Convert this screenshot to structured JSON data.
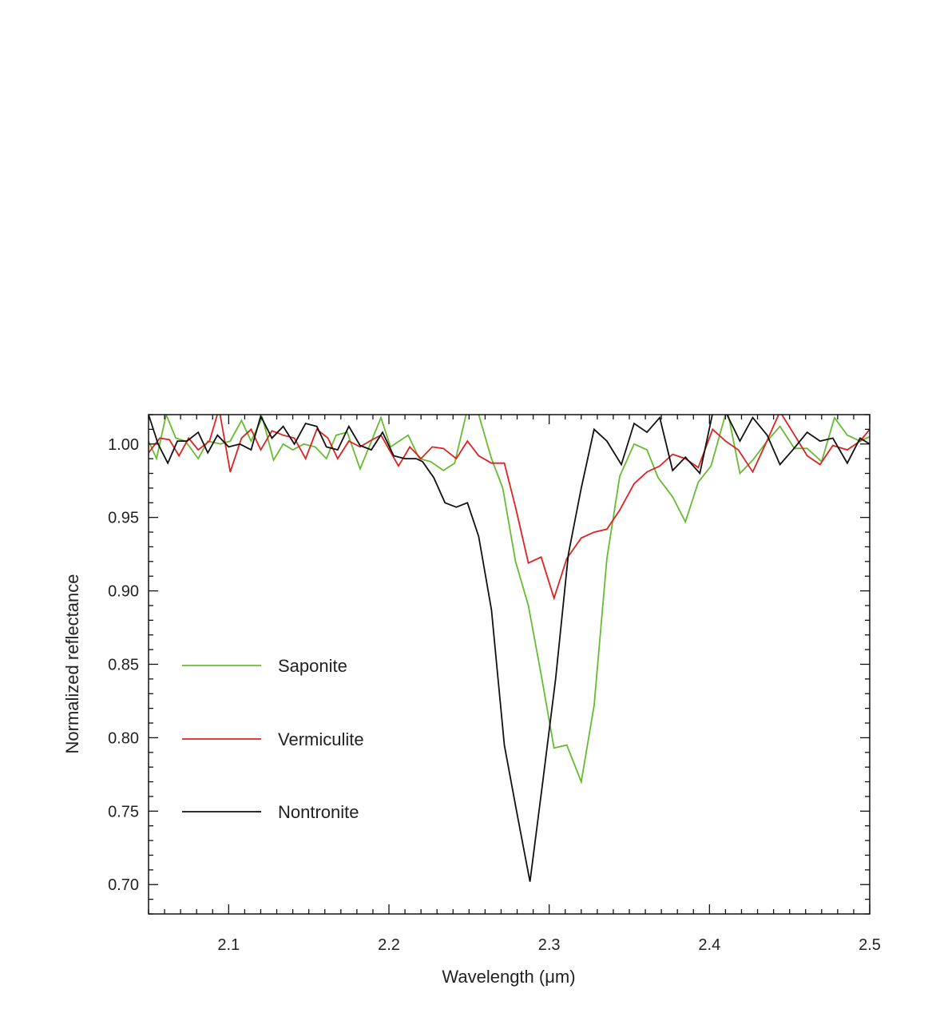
{
  "chart_data": {
    "type": "line",
    "title": "",
    "xlabel": "Wavelength (μm)",
    "ylabel": "Normalized reflectance",
    "xlim": [
      2.05,
      2.5
    ],
    "ylim": [
      0.68,
      1.02
    ],
    "grid": false,
    "legend_placement": "center-left",
    "x_ticks": [
      2.1,
      2.2,
      2.3,
      2.4,
      2.5
    ],
    "x_tick_labels": [
      "2.1",
      "2.2",
      "2.3",
      "2.4",
      "2.5"
    ],
    "y_ticks": [
      0.7,
      0.75,
      0.8,
      0.85,
      0.9,
      0.95,
      1.0
    ],
    "y_tick_labels": [
      "0.70",
      "0.75",
      "0.80",
      "0.85",
      "0.90",
      "0.95",
      "1.00"
    ],
    "series": [
      {
        "name": "Saponite",
        "color": "#66bb33",
        "points": [
          [
            2.05,
            1.002
          ],
          [
            2.055,
            0.99
          ],
          [
            2.061,
            1.02
          ],
          [
            2.067,
            1.004
          ],
          [
            2.073,
            1.002
          ],
          [
            2.081,
            0.99
          ],
          [
            2.087,
            1.002
          ],
          [
            2.095,
            1.0
          ],
          [
            2.101,
            1.002
          ],
          [
            2.108,
            1.016
          ],
          [
            2.114,
            1.002
          ],
          [
            2.121,
            1.018
          ],
          [
            2.128,
            0.989
          ],
          [
            2.134,
            1.0
          ],
          [
            2.14,
            0.996
          ],
          [
            2.147,
            1.0
          ],
          [
            2.154,
            0.998
          ],
          [
            2.161,
            0.99
          ],
          [
            2.167,
            1.006
          ],
          [
            2.174,
            1.008
          ],
          [
            2.182,
            0.983
          ],
          [
            2.188,
            0.999
          ],
          [
            2.195,
            1.018
          ],
          [
            2.201,
            0.998
          ],
          [
            2.212,
            1.006
          ],
          [
            2.219,
            0.99
          ],
          [
            2.226,
            0.988
          ],
          [
            2.234,
            0.982
          ],
          [
            2.241,
            0.987
          ],
          [
            2.249,
            1.024
          ],
          [
            2.256,
            1.02
          ],
          [
            2.264,
            0.99
          ],
          [
            2.271,
            0.97
          ],
          [
            2.279,
            0.92
          ],
          [
            2.287,
            0.89
          ],
          [
            2.295,
            0.843
          ],
          [
            2.303,
            0.793
          ],
          [
            2.311,
            0.795
          ],
          [
            2.32,
            0.77
          ],
          [
            2.328,
            0.822
          ],
          [
            2.336,
            0.922
          ],
          [
            2.344,
            0.978
          ],
          [
            2.353,
            1.0
          ],
          [
            2.361,
            0.996
          ],
          [
            2.368,
            0.977
          ],
          [
            2.377,
            0.964
          ],
          [
            2.385,
            0.947
          ],
          [
            2.393,
            0.974
          ],
          [
            2.401,
            0.985
          ],
          [
            2.411,
            1.024
          ],
          [
            2.419,
            0.98
          ],
          [
            2.427,
            0.989
          ],
          [
            2.436,
            1.002
          ],
          [
            2.444,
            1.012
          ],
          [
            2.453,
            0.997
          ],
          [
            2.461,
            0.997
          ],
          [
            2.47,
            0.988
          ],
          [
            2.478,
            1.018
          ],
          [
            2.486,
            1.006
          ],
          [
            2.494,
            1.002
          ],
          [
            2.5,
            1.005
          ]
        ]
      },
      {
        "name": "Vermiculite",
        "color": "#dd2222",
        "points": [
          [
            2.05,
            0.994
          ],
          [
            2.057,
            1.004
          ],
          [
            2.063,
            1.003
          ],
          [
            2.069,
            0.992
          ],
          [
            2.075,
            1.004
          ],
          [
            2.081,
            0.996
          ],
          [
            2.088,
            1.002
          ],
          [
            2.094,
            1.024
          ],
          [
            2.101,
            0.981
          ],
          [
            2.108,
            1.004
          ],
          [
            2.114,
            1.01
          ],
          [
            2.12,
            0.996
          ],
          [
            2.127,
            1.009
          ],
          [
            2.134,
            1.006
          ],
          [
            2.141,
            1.004
          ],
          [
            2.148,
            0.99
          ],
          [
            2.155,
            1.01
          ],
          [
            2.162,
            1.004
          ],
          [
            2.168,
            0.99
          ],
          [
            2.175,
            1.002
          ],
          [
            2.182,
            0.998
          ],
          [
            2.188,
            1.002
          ],
          [
            2.195,
            1.006
          ],
          [
            2.206,
            0.985
          ],
          [
            2.213,
            0.998
          ],
          [
            2.22,
            0.99
          ],
          [
            2.227,
            0.998
          ],
          [
            2.234,
            0.997
          ],
          [
            2.242,
            0.99
          ],
          [
            2.249,
            1.002
          ],
          [
            2.256,
            0.992
          ],
          [
            2.264,
            0.987
          ],
          [
            2.272,
            0.987
          ],
          [
            2.279,
            0.957
          ],
          [
            2.287,
            0.919
          ],
          [
            2.295,
            0.923
          ],
          [
            2.303,
            0.895
          ],
          [
            2.311,
            0.922
          ],
          [
            2.32,
            0.936
          ],
          [
            2.328,
            0.94
          ],
          [
            2.336,
            0.942
          ],
          [
            2.344,
            0.955
          ],
          [
            2.353,
            0.973
          ],
          [
            2.361,
            0.981
          ],
          [
            2.369,
            0.985
          ],
          [
            2.377,
            0.993
          ],
          [
            2.385,
            0.99
          ],
          [
            2.393,
            0.984
          ],
          [
            2.402,
            1.01
          ],
          [
            2.41,
            1.002
          ],
          [
            2.418,
            0.996
          ],
          [
            2.427,
            0.981
          ],
          [
            2.435,
            1.0
          ],
          [
            2.444,
            1.022
          ],
          [
            2.452,
            1.008
          ],
          [
            2.461,
            0.992
          ],
          [
            2.469,
            0.986
          ],
          [
            2.477,
            0.999
          ],
          [
            2.486,
            0.996
          ],
          [
            2.494,
            1.002
          ],
          [
            2.5,
            1.01
          ]
        ]
      },
      {
        "name": "Nontronite",
        "color": "#111111",
        "points": [
          [
            2.05,
            1.02
          ],
          [
            2.056,
            1.0
          ],
          [
            2.062,
            0.987
          ],
          [
            2.068,
            1.002
          ],
          [
            2.074,
            1.002
          ],
          [
            2.081,
            1.008
          ],
          [
            2.087,
            0.994
          ],
          [
            2.093,
            1.006
          ],
          [
            2.1,
            0.998
          ],
          [
            2.107,
            1.0
          ],
          [
            2.114,
            0.996
          ],
          [
            2.12,
            1.019
          ],
          [
            2.127,
            1.004
          ],
          [
            2.134,
            1.012
          ],
          [
            2.141,
            1.0
          ],
          [
            2.148,
            1.014
          ],
          [
            2.155,
            1.012
          ],
          [
            2.161,
            0.998
          ],
          [
            2.168,
            0.996
          ],
          [
            2.175,
            1.012
          ],
          [
            2.182,
            0.999
          ],
          [
            2.189,
            0.996
          ],
          [
            2.196,
            1.008
          ],
          [
            2.203,
            0.992
          ],
          [
            2.21,
            0.99
          ],
          [
            2.217,
            0.99
          ],
          [
            2.221,
            0.988
          ],
          [
            2.228,
            0.977
          ],
          [
            2.235,
            0.96
          ],
          [
            2.242,
            0.957
          ],
          [
            2.249,
            0.96
          ],
          [
            2.256,
            0.937
          ],
          [
            2.264,
            0.887
          ],
          [
            2.272,
            0.795
          ],
          [
            2.28,
            0.748
          ],
          [
            2.288,
            0.702
          ],
          [
            2.296,
            0.77
          ],
          [
            2.304,
            0.84
          ],
          [
            2.312,
            0.925
          ],
          [
            2.32,
            0.97
          ],
          [
            2.328,
            1.01
          ],
          [
            2.336,
            1.002
          ],
          [
            2.345,
            0.986
          ],
          [
            2.353,
            1.014
          ],
          [
            2.361,
            1.008
          ],
          [
            2.369,
            1.018
          ],
          [
            2.377,
            0.982
          ],
          [
            2.385,
            0.991
          ],
          [
            2.394,
            0.98
          ],
          [
            2.402,
            1.021
          ],
          [
            2.41,
            1.022
          ],
          [
            2.419,
            1.002
          ],
          [
            2.427,
            1.018
          ],
          [
            2.436,
            1.006
          ],
          [
            2.444,
            0.986
          ],
          [
            2.452,
            0.996
          ],
          [
            2.461,
            1.008
          ],
          [
            2.469,
            1.002
          ],
          [
            2.477,
            1.004
          ],
          [
            2.486,
            0.987
          ],
          [
            2.494,
            1.004
          ],
          [
            2.5,
            1.0
          ]
        ]
      }
    ]
  }
}
